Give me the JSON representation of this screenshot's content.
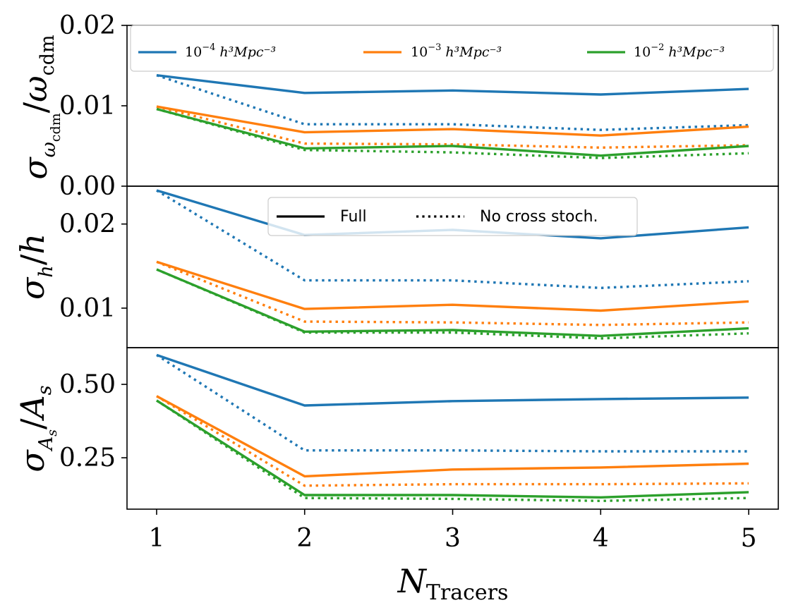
{
  "chart_data": {
    "type": "line",
    "xlabel": "N",
    "xlabel_sub": "Tracers",
    "x": [
      1,
      2,
      3,
      4,
      5
    ],
    "xlim": [
      0.8,
      5.2
    ],
    "xticks": [
      "1",
      "2",
      "3",
      "4",
      "5"
    ],
    "colors": {
      "blue": "#1f77b4",
      "orange": "#ff7f0e",
      "green": "#2ca02c"
    },
    "density_legend": {
      "placement": "top",
      "entries": [
        {
          "name": "10",
          "exp": "−4",
          "unit": "h³Mpc⁻³",
          "color": "blue"
        },
        {
          "name": "10",
          "exp": "−3",
          "unit": "h³Mpc⁻³",
          "color": "orange"
        },
        {
          "name": "10",
          "exp": "−2",
          "unit": "h³Mpc⁻³",
          "color": "green"
        }
      ]
    },
    "style_legend": {
      "placement": "upper-center of middle panel",
      "entries": [
        {
          "label": "Full",
          "style": "solid"
        },
        {
          "label": "No cross stoch.",
          "style": "dotted"
        }
      ]
    },
    "panels": [
      {
        "id": "omega",
        "ylabel": "σ_ω_cdm / ω_cdm",
        "ylim": [
          0.0,
          0.02
        ],
        "yticks": [
          {
            "v": 0.0,
            "label": "0.00"
          },
          {
            "v": 0.01,
            "label": "0.01"
          },
          {
            "v": 0.02,
            "label": "0.02"
          }
        ],
        "series": [
          {
            "color": "blue",
            "style": "solid",
            "values": [
              0.0138,
              0.0116,
              0.0119,
              0.0114,
              0.0121
            ]
          },
          {
            "color": "blue",
            "style": "dotted",
            "values": [
              0.0138,
              0.0077,
              0.0077,
              0.007,
              0.0076
            ]
          },
          {
            "color": "orange",
            "style": "solid",
            "values": [
              0.0099,
              0.0067,
              0.0071,
              0.0063,
              0.0074
            ]
          },
          {
            "color": "orange",
            "style": "dotted",
            "values": [
              0.0099,
              0.0053,
              0.0052,
              0.0048,
              0.0051
            ]
          },
          {
            "color": "green",
            "style": "solid",
            "values": [
              0.0096,
              0.0047,
              0.005,
              0.0038,
              0.005
            ]
          },
          {
            "color": "green",
            "style": "dotted",
            "values": [
              0.0096,
              0.0045,
              0.0042,
              0.0035,
              0.0041
            ]
          }
        ]
      },
      {
        "id": "h",
        "ylabel": "σ_h / h",
        "ylim": [
          0.0053,
          0.0245
        ],
        "yticks": [
          {
            "v": 0.01,
            "label": "0.01"
          },
          {
            "v": 0.02,
            "label": "0.02"
          }
        ],
        "series": [
          {
            "color": "blue",
            "style": "solid",
            "values": [
              0.024,
              0.0187,
              0.0193,
              0.0183,
              0.0196
            ]
          },
          {
            "color": "blue",
            "style": "dotted",
            "values": [
              0.024,
              0.0133,
              0.0133,
              0.0124,
              0.0132
            ]
          },
          {
            "color": "orange",
            "style": "solid",
            "values": [
              0.0155,
              0.0099,
              0.0104,
              0.0097,
              0.0108
            ]
          },
          {
            "color": "orange",
            "style": "dotted",
            "values": [
              0.0155,
              0.0084,
              0.0083,
              0.008,
              0.0083
            ]
          },
          {
            "color": "green",
            "style": "solid",
            "values": [
              0.0146,
              0.0072,
              0.0074,
              0.0067,
              0.0076
            ]
          },
          {
            "color": "green",
            "style": "dotted",
            "values": [
              0.0146,
              0.0071,
              0.0071,
              0.0064,
              0.007
            ]
          }
        ]
      },
      {
        "id": "As",
        "ylabel": "σ_As / A_s",
        "ylim": [
          0.075,
          0.625
        ],
        "yticks": [
          {
            "v": 0.25,
            "label": "0.25"
          },
          {
            "v": 0.5,
            "label": "0.50"
          }
        ],
        "series": [
          {
            "color": "blue",
            "style": "solid",
            "values": [
              0.6,
              0.428,
              0.443,
              0.45,
              0.455
            ]
          },
          {
            "color": "blue",
            "style": "dotted",
            "values": [
              0.6,
              0.275,
              0.275,
              0.272,
              0.272
            ]
          },
          {
            "color": "orange",
            "style": "solid",
            "values": [
              0.46,
              0.187,
              0.21,
              0.217,
              0.23
            ]
          },
          {
            "color": "orange",
            "style": "dotted",
            "values": [
              0.46,
              0.155,
              0.16,
              0.16,
              0.163
            ]
          },
          {
            "color": "green",
            "style": "solid",
            "values": [
              0.445,
              0.123,
              0.123,
              0.115,
              0.133
            ]
          },
          {
            "color": "green",
            "style": "dotted",
            "values": [
              0.445,
              0.113,
              0.11,
              0.103,
              0.113
            ]
          }
        ]
      }
    ]
  }
}
